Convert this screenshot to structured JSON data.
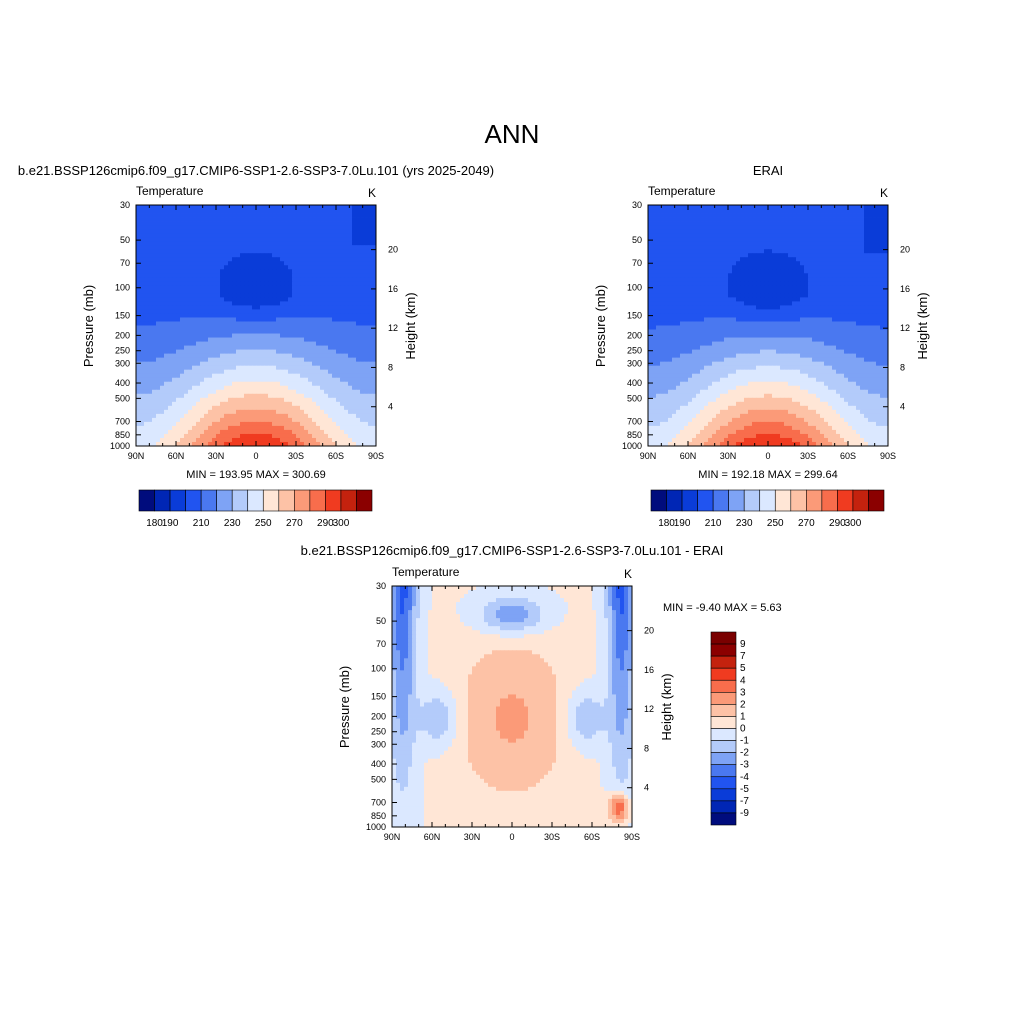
{
  "figure": {
    "title": "ANN"
  },
  "chart_data": [
    {
      "type": "heatmap",
      "title": "b.e21.BSSP126cmip6.f09_g17.CMIP6-SSP1-2.6-SSP3-7.0Lu.101 (yrs 2025-2049)",
      "variable": "Temperature",
      "units": "K",
      "xlabel": "",
      "ylabel": "Pressure (mb)",
      "y2label": "Height (km)",
      "xticks": [
        "90N",
        "60N",
        "30N",
        "0",
        "30S",
        "60S",
        "90S"
      ],
      "yticks": [
        30,
        50,
        70,
        100,
        150,
        200,
        250,
        300,
        400,
        500,
        700,
        850,
        1000
      ],
      "y2ticks": [
        20,
        16,
        12,
        8,
        4
      ],
      "ylim": [
        1000,
        30
      ],
      "y_scale": "log",
      "stats_text": "MIN = 193.95  MAX = 300.69",
      "min": 193.95,
      "max": 300.69,
      "field": "abs",
      "colorbar": {
        "orientation": "horizontal",
        "labels": [
          "180",
          "190",
          "200",
          "210",
          "220",
          "230",
          "240",
          "250",
          "260",
          "270",
          "280",
          "290",
          "300"
        ],
        "shown_labels": [
          "180",
          "190",
          "210",
          "230",
          "250",
          "270",
          "290",
          "300"
        ],
        "levels": [
          180,
          190,
          200,
          210,
          220,
          230,
          240,
          250,
          260,
          270,
          280,
          290,
          300
        ]
      }
    },
    {
      "type": "heatmap",
      "title": "ERAI",
      "variable": "Temperature",
      "units": "K",
      "xlabel": "",
      "ylabel": "Pressure (mb)",
      "y2label": "Height (km)",
      "xticks": [
        "90N",
        "60N",
        "30N",
        "0",
        "30S",
        "60S",
        "90S"
      ],
      "yticks": [
        30,
        50,
        70,
        100,
        150,
        200,
        250,
        300,
        400,
        500,
        700,
        850,
        1000
      ],
      "y2ticks": [
        20,
        16,
        12,
        8,
        4
      ],
      "ylim": [
        1000,
        30
      ],
      "y_scale": "log",
      "stats_text": "MIN = 192.18  MAX = 299.64",
      "min": 192.18,
      "max": 299.64,
      "field": "abs",
      "colorbar": {
        "orientation": "horizontal",
        "labels": [
          "180",
          "190",
          "200",
          "210",
          "220",
          "230",
          "240",
          "250",
          "260",
          "270",
          "280",
          "290",
          "300"
        ],
        "shown_labels": [
          "180",
          "190",
          "210",
          "230",
          "250",
          "270",
          "290",
          "300"
        ],
        "levels": [
          180,
          190,
          200,
          210,
          220,
          230,
          240,
          250,
          260,
          270,
          280,
          290,
          300
        ]
      }
    },
    {
      "type": "heatmap",
      "title": "b.e21.BSSP126cmip6.f09_g17.CMIP6-SSP1-2.6-SSP3-7.0Lu.101 - ERAI",
      "variable": "Temperature",
      "units": "K",
      "xlabel": "",
      "ylabel": "Pressure (mb)",
      "y2label": "Height (km)",
      "xticks": [
        "90N",
        "60N",
        "30N",
        "0",
        "30S",
        "60S",
        "90S"
      ],
      "yticks": [
        30,
        50,
        70,
        100,
        150,
        200,
        250,
        300,
        400,
        500,
        700,
        850,
        1000
      ],
      "y2ticks": [
        20,
        16,
        12,
        8,
        4
      ],
      "ylim": [
        1000,
        30
      ],
      "y_scale": "log",
      "stats_text": "MIN =  -9.40  MAX =   5.63",
      "min": -9.4,
      "max": 5.63,
      "field": "diff",
      "colorbar": {
        "orientation": "vertical",
        "labels": [
          "9",
          "7",
          "5",
          "4",
          "3",
          "2",
          "1",
          "0",
          "-1",
          "-2",
          "-3",
          "-4",
          "-5",
          "-7",
          "-9"
        ],
        "levels": [
          9,
          7,
          5,
          4,
          3,
          2,
          1,
          0,
          -1,
          -2,
          -3,
          -4,
          -5,
          -7,
          -9
        ]
      }
    }
  ],
  "colors": {
    "abs_palette": [
      "#000c7d",
      "#0026b5",
      "#0a3cd8",
      "#2154f0",
      "#4a78f0",
      "#7ea3f5",
      "#b3cbfa",
      "#dbe8ff",
      "#ffe6d6",
      "#fdc2a6",
      "#fb9a78",
      "#f86d4c",
      "#f03b20",
      "#c4220e",
      "#8b0000"
    ],
    "diff_palette": [
      "#000c7d",
      "#0026b5",
      "#0a3cd8",
      "#2154f0",
      "#4a78f0",
      "#7ea3f5",
      "#b3cbfa",
      "#dbe8ff",
      "#ffe6d6",
      "#fdc2a6",
      "#fb9a78",
      "#f86d4c",
      "#f03b20",
      "#c4220e",
      "#8b0000",
      "#7a0000"
    ]
  }
}
